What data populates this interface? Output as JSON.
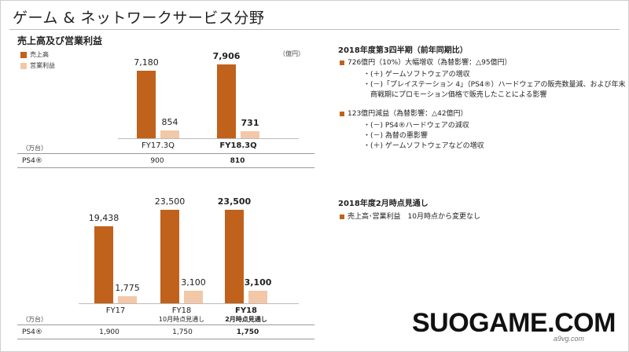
{
  "title": "ゲーム & ネットワークサービス分野",
  "subtitle": "売上高及び営業利益",
  "colors": {
    "sales": "#c0621c",
    "profit": "#f2c8a8",
    "accent": "#c0621c"
  },
  "legend": {
    "sales": "売上高",
    "profit": "営業利益"
  },
  "chart_data": [
    {
      "type": "bar",
      "categories": [
        "FY17.3Q",
        "FY18.3Q"
      ],
      "series": [
        {
          "name": "売上高",
          "values": [
            7180,
            7906
          ]
        },
        {
          "name": "営業利益",
          "values": [
            854,
            731
          ]
        }
      ],
      "value_labels": {
        "sales": [
          "7,180",
          "7,906"
        ],
        "profit": [
          "854",
          "731"
        ]
      },
      "unit": "（億円）",
      "ylim": [
        0,
        8200
      ],
      "bold_category_index": 1
    },
    {
      "type": "bar",
      "categories": [
        "FY17",
        "FY18",
        "FY18"
      ],
      "category_sublabels": [
        "",
        "10月時点見通し",
        "2月時点見通し"
      ],
      "series": [
        {
          "name": "売上高",
          "values": [
            19438,
            23500,
            23500
          ]
        },
        {
          "name": "営業利益",
          "values": [
            1775,
            3100,
            3100
          ]
        }
      ],
      "value_labels": {
        "sales": [
          "19,438",
          "23,500",
          "23,500"
        ],
        "profit": [
          "1,775",
          "3,100",
          "3,100"
        ]
      },
      "ylim": [
        0,
        24500
      ],
      "bold_category_index": 2
    }
  ],
  "table1": {
    "unit": "（万台）",
    "label": "PS4®",
    "values": [
      "900",
      "810"
    ]
  },
  "table2": {
    "unit": "（万台）",
    "label": "PS4®",
    "values": [
      "1,900",
      "1,750",
      "1,750"
    ]
  },
  "right": {
    "q3_head": "2018年度第3四半期（前年同期比）",
    "q3_sales": "726億円（10%）大幅増収（為替影響：△95億円）",
    "q3_sales_notes": [
      "・(＋) ゲームソフトウェアの増収",
      "・(－)「プレイステーション 4」（PS4®）ハードウェアの販売数量減、および年末",
      "　商戦期にプロモーション価格で販売したことによる影響"
    ],
    "q3_profit": "123億円減益（為替影響：△42億円）",
    "q3_profit_notes": [
      "・(－) PS4®ハードウェアの減収",
      "・(－) 為替の悪影響",
      "・(＋) ゲームソフトウェアなどの増収"
    ],
    "fy_head": "2018年度2月時点見通し",
    "fy_line": "売上高･営業利益　10月時点から変更なし"
  },
  "watermark": {
    "main": "SUOGAME.COM",
    "small": "a9vg.com"
  }
}
